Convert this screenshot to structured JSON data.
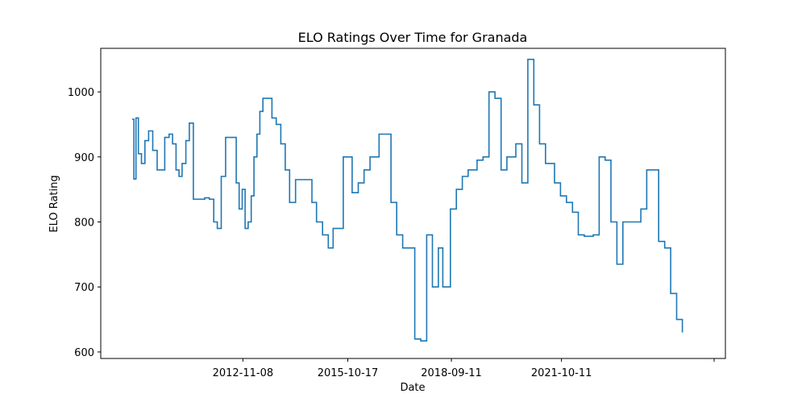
{
  "chart_data": {
    "type": "line",
    "title": "ELO Ratings Over Time for Granada",
    "xlabel": "Date",
    "ylabel": "ELO Rating",
    "x_type": "date",
    "xlim": [
      "2008-11-15",
      "2026-05-15"
    ],
    "ylim": [
      590,
      1067
    ],
    "x_ticks": [
      "2012-11-08",
      "2015-10-17",
      "2018-09-11",
      "2021-10-11"
    ],
    "y_ticks": [
      600,
      700,
      800,
      900,
      1000
    ],
    "grid": false,
    "legend": "none",
    "line_color": "#1f77b4",
    "series": [
      {
        "x": [
          "2009-10-01",
          "2009-10-20",
          "2009-11-10",
          "2009-12-05",
          "2010-01-05",
          "2010-02-10",
          "2010-03-20",
          "2010-05-01",
          "2010-06-15",
          "2010-09-01",
          "2010-10-15",
          "2010-11-20",
          "2010-12-25",
          "2011-01-25",
          "2011-02-25",
          "2011-04-05",
          "2011-05-10",
          "2011-06-20",
          "2011-09-01",
          "2011-10-15",
          "2011-12-01",
          "2012-01-15",
          "2012-02-20",
          "2012-04-01",
          "2012-05-15",
          "2012-09-01",
          "2012-10-01",
          "2012-11-01",
          "2012-12-01",
          "2013-01-01",
          "2013-02-01",
          "2013-03-01",
          "2013-04-01",
          "2013-05-01",
          "2013-06-01",
          "2013-09-01",
          "2013-10-15",
          "2013-12-01",
          "2014-01-15",
          "2014-03-01",
          "2014-05-01",
          "2014-06-15",
          "2014-09-01",
          "2014-10-15",
          "2014-12-01",
          "2015-02-01",
          "2015-04-01",
          "2015-05-20",
          "2015-09-01",
          "2015-10-15",
          "2015-12-01",
          "2016-02-01",
          "2016-04-01",
          "2016-06-01",
          "2016-09-01",
          "2016-11-01",
          "2017-01-01",
          "2017-03-01",
          "2017-05-01",
          "2017-09-01",
          "2017-11-01",
          "2018-01-01",
          "2018-03-01",
          "2018-05-01",
          "2018-06-15",
          "2018-09-01",
          "2018-11-01",
          "2019-01-01",
          "2019-03-01",
          "2019-06-01",
          "2019-08-01",
          "2019-10-01",
          "2019-12-01",
          "2020-02-01",
          "2020-04-01",
          "2020-07-01",
          "2020-09-01",
          "2020-11-01",
          "2021-01-01",
          "2021-03-01",
          "2021-05-01",
          "2021-08-01",
          "2021-10-01",
          "2021-12-01",
          "2022-02-01",
          "2022-04-01",
          "2022-06-01",
          "2022-09-01",
          "2022-11-01",
          "2023-01-01",
          "2023-03-01",
          "2023-05-01",
          "2023-07-01",
          "2023-09-01",
          "2023-11-01",
          "2024-01-01",
          "2024-03-01",
          "2024-05-01",
          "2024-07-01",
          "2024-09-01",
          "2024-11-01",
          "2025-01-01",
          "2025-03-01"
        ],
        "y": [
          958,
          866,
          960,
          905,
          890,
          925,
          940,
          910,
          880,
          930,
          935,
          920,
          880,
          870,
          890,
          925,
          952,
          835,
          835,
          837,
          835,
          800,
          790,
          870,
          930,
          860,
          820,
          850,
          790,
          800,
          840,
          900,
          935,
          970,
          990,
          960,
          950,
          920,
          880,
          830,
          865,
          865,
          865,
          830,
          800,
          780,
          760,
          790,
          900,
          900,
          845,
          860,
          880,
          900,
          935,
          935,
          830,
          780,
          760,
          620,
          617,
          780,
          700,
          760,
          700,
          820,
          850,
          870,
          880,
          895,
          900,
          1000,
          990,
          880,
          900,
          920,
          860,
          1050,
          980,
          920,
          890,
          860,
          840,
          830,
          815,
          780,
          778,
          780,
          900,
          895,
          800,
          735,
          800,
          800,
          800,
          820,
          880,
          880,
          770,
          760,
          690,
          650,
          630
        ]
      }
    ]
  }
}
